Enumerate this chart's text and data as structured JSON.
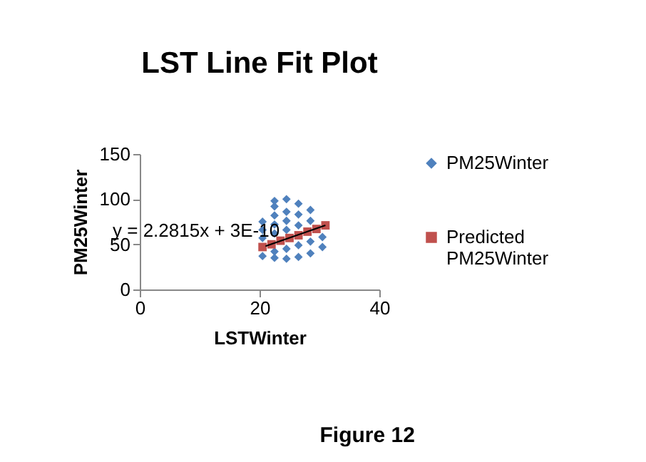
{
  "chart_data": {
    "type": "scatter",
    "title": "LST Line Fit  Plot",
    "xlabel": "LSTWinter",
    "ylabel": "PM25Winter",
    "xlim": [
      0,
      40
    ],
    "xticks": [
      0,
      20,
      40
    ],
    "ylim": [
      0,
      150
    ],
    "yticks": [
      0,
      50,
      100,
      150
    ],
    "grid": false,
    "legend": "right",
    "annotations": [
      "y = 2.2815x + 3E-10",
      "Figure 12"
    ],
    "series": [
      {
        "name": "PM25Winter",
        "color": "#4f81bd",
        "marker": "diamond",
        "x": [
          20.5,
          20.5,
          20.5,
          20.5,
          22.5,
          22.5,
          22.5,
          22.5,
          22.5,
          22.5,
          22.5,
          24.5,
          24.5,
          24.5,
          24.5,
          24.5,
          24.5,
          26.5,
          26.5,
          26.5,
          26.5,
          26.5,
          28.5,
          28.5,
          28.5,
          28.5,
          30.5,
          30.5
        ],
        "values": [
          37,
          57,
          66,
          75,
          35,
          42,
          62,
          72,
          82,
          92,
          98,
          34,
          45,
          66,
          76,
          86,
          100,
          36,
          49,
          71,
          83,
          95,
          40,
          53,
          76,
          88,
          47,
          58
        ]
      },
      {
        "name": "Predicted PM25Winter",
        "color": "#c0504d",
        "marker": "square",
        "x": [
          20.5,
          22,
          23.5,
          25,
          26.5,
          28,
          29.5,
          31
        ],
        "values": [
          47,
          50,
          54,
          57,
          60,
          64,
          67,
          71
        ]
      },
      {
        "type": "line",
        "color": "#000000",
        "x": [
          21,
          31
        ],
        "values": [
          48,
          71
        ]
      }
    ]
  }
}
